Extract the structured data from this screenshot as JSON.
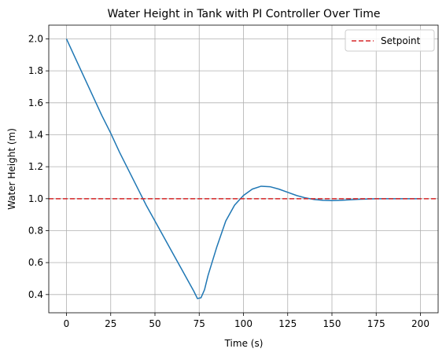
{
  "chart_data": {
    "type": "line",
    "title": "Water Height in Tank with PI Controller Over Time",
    "xlabel": "Time (s)",
    "ylabel": "Water Height (m)",
    "xlim": [
      -10,
      210
    ],
    "ylim": [
      0.286,
      2.086
    ],
    "xticks": [
      0,
      25,
      50,
      75,
      100,
      125,
      150,
      175,
      200
    ],
    "yticks": [
      0.4,
      0.6,
      0.8,
      1.0,
      1.2,
      1.4,
      1.6,
      1.8,
      2.0
    ],
    "xtick_labels": [
      "0",
      "25",
      "50",
      "75",
      "100",
      "125",
      "150",
      "175",
      "200"
    ],
    "ytick_labels": [
      "0.4",
      "0.6",
      "0.8",
      "1.0",
      "1.2",
      "1.4",
      "1.6",
      "1.8",
      "2.0"
    ],
    "grid": true,
    "legend_position": "top-right",
    "series": [
      {
        "color": "#1f77b4",
        "style": "solid",
        "x": [
          0,
          5,
          10,
          15,
          20,
          25,
          30,
          35,
          40,
          45,
          50,
          55,
          60,
          65,
          70,
          72,
          74,
          76,
          78,
          80,
          85,
          90,
          95,
          100,
          105,
          110,
          115,
          120,
          125,
          130,
          135,
          140,
          145,
          150,
          155,
          160,
          165,
          170,
          175,
          180,
          185,
          190,
          195,
          200
        ],
        "y": [
          2.0,
          1.88,
          1.76,
          1.64,
          1.52,
          1.41,
          1.29,
          1.18,
          1.07,
          0.96,
          0.86,
          0.76,
          0.66,
          0.56,
          0.46,
          0.42,
          0.375,
          0.38,
          0.43,
          0.52,
          0.7,
          0.86,
          0.96,
          1.02,
          1.06,
          1.078,
          1.075,
          1.06,
          1.04,
          1.02,
          1.005,
          0.995,
          0.99,
          0.988,
          0.99,
          0.993,
          0.996,
          0.998,
          1.0,
          1.0,
          1.0,
          1.0,
          1.0,
          1.0
        ]
      },
      {
        "name": "Setpoint",
        "color": "#d62728",
        "style": "dashed",
        "x": [
          -10,
          210
        ],
        "y": [
          1.0,
          1.0
        ]
      }
    ]
  }
}
